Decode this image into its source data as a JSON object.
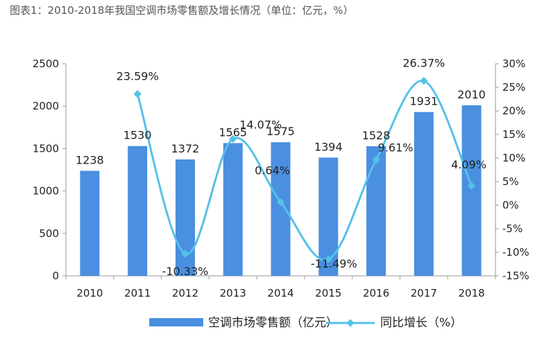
{
  "chart_data": {
    "type": "bar",
    "title": "图表1：2010-2018年我国空调市场零售额及增长情况（单位：亿元，%）",
    "categories": [
      "2010",
      "2011",
      "2012",
      "2013",
      "2014",
      "2015",
      "2016",
      "2017",
      "2018"
    ],
    "series": [
      {
        "name": "空调市场零售额（亿元）",
        "type": "bar",
        "axis": "left",
        "values": [
          1238,
          1530,
          1372,
          1565,
          1575,
          1394,
          1528,
          1931,
          2010
        ],
        "labels": [
          "1238",
          "1530",
          "1372",
          "1565",
          "1575",
          "1394",
          "1528",
          "1931",
          "2010"
        ]
      },
      {
        "name": "同比增长（%）",
        "type": "line",
        "axis": "right",
        "values": [
          null,
          23.59,
          -10.33,
          14.07,
          0.64,
          -11.49,
          9.61,
          26.37,
          4.09
        ],
        "labels": [
          "",
          "23.59%",
          "-10.33%",
          "14.07%",
          "0.64%",
          "-11.49%",
          "9.61%",
          "26.37%",
          "4.09%"
        ]
      }
    ],
    "ylim_left": [
      0,
      2500
    ],
    "yticks_left": [
      "0",
      "500",
      "1000",
      "1500",
      "2000",
      "2500"
    ],
    "ylim_right": [
      -15,
      30
    ],
    "yticks_right": [
      "-15%",
      "-10%",
      "-5%",
      "0%",
      "5%",
      "10%",
      "15%",
      "20%",
      "25%",
      "30%"
    ],
    "colors": {
      "bar": "#4a8fe0",
      "line": "#56c1e8",
      "axis": "#999999"
    },
    "grid": false,
    "legend_position": "bottom"
  }
}
